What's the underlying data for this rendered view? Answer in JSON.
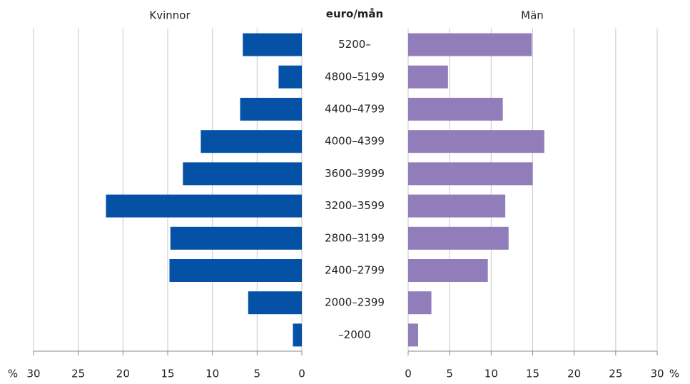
{
  "chart_data": {
    "type": "butterfly",
    "category_header": "euro/mån",
    "categories": [
      "5200–",
      "4800–5199",
      "4400–4799",
      "4000–4399",
      "3600–3999",
      "3200–3599",
      "2800–3199",
      "2400–2799",
      "2000–2399",
      "–2000"
    ],
    "series": [
      {
        "name": "Kvinnor",
        "color": "#0451a5",
        "values": [
          6.6,
          2.6,
          6.9,
          11.3,
          13.3,
          21.9,
          14.7,
          14.8,
          6.0,
          1.0
        ]
      },
      {
        "name": "Män",
        "color": "#917dba",
        "values": [
          14.9,
          4.8,
          11.4,
          16.4,
          15.0,
          11.7,
          12.1,
          9.6,
          2.8,
          1.2
        ]
      }
    ],
    "xlabel": "%",
    "xlim": [
      0,
      30
    ],
    "xticks": [
      0,
      5,
      10,
      15,
      20,
      25,
      30
    ],
    "grid": true
  }
}
